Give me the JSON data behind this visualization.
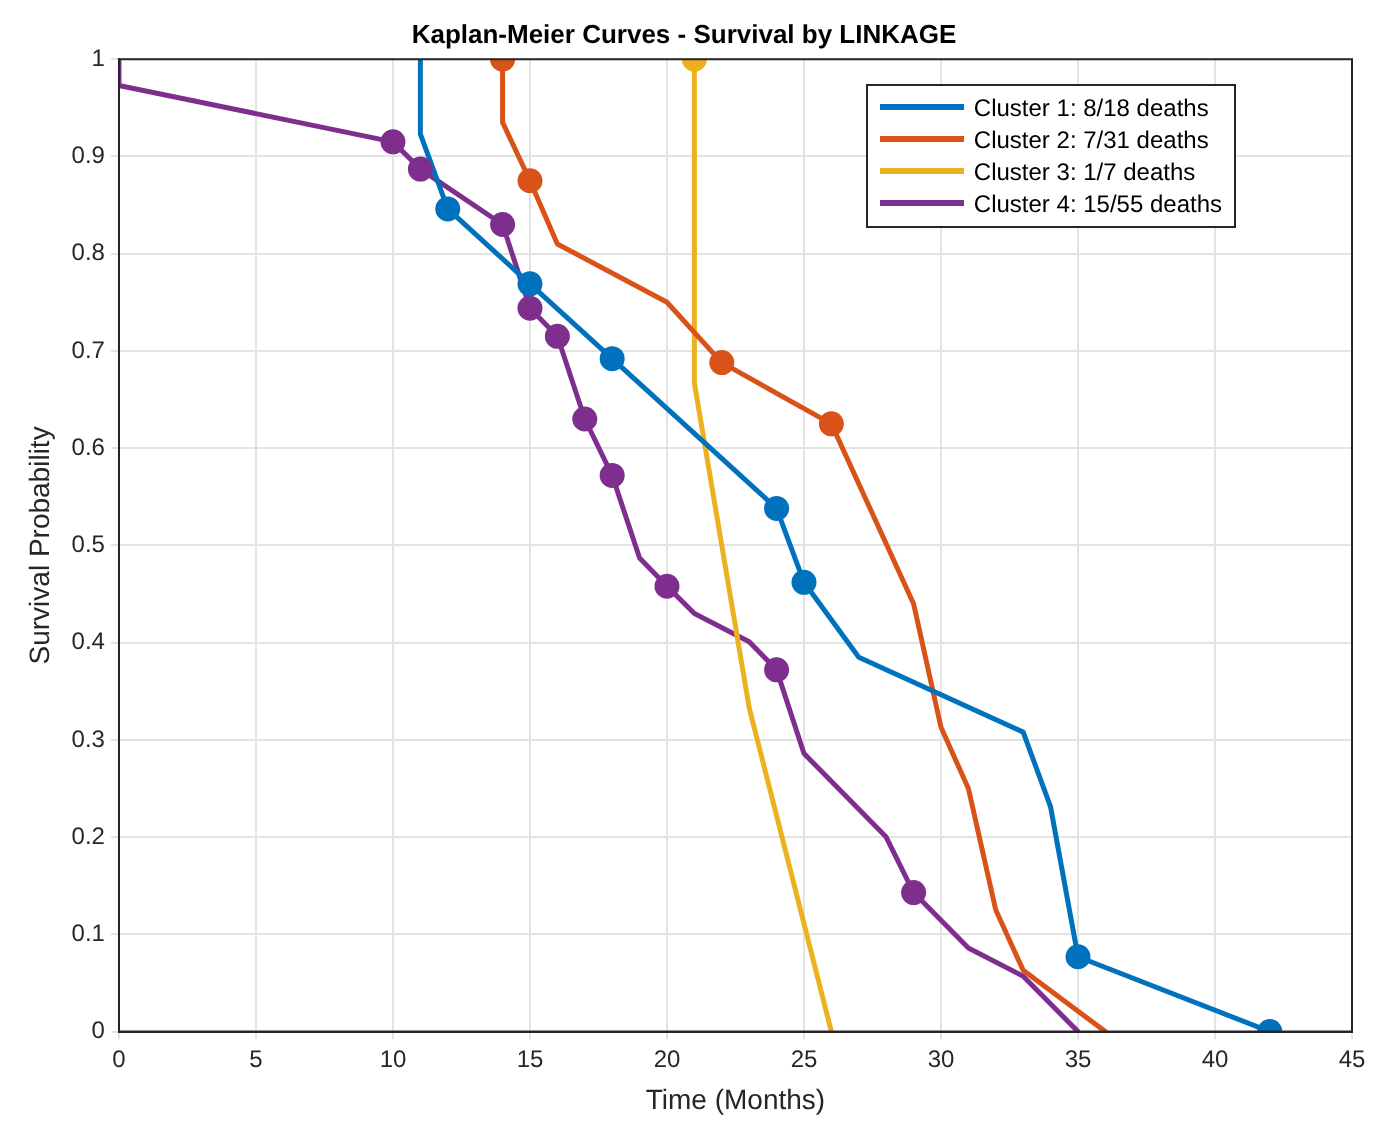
{
  "chart_data": {
    "type": "line",
    "title": "Kaplan-Meier Curves - Survival by LINKAGE",
    "xlabel": "Time (Months)",
    "ylabel": "Survival Probability",
    "xlim": [
      0,
      45
    ],
    "ylim": [
      0,
      1
    ],
    "xticks": [
      0,
      5,
      10,
      15,
      20,
      25,
      30,
      35,
      40,
      45
    ],
    "yticks": [
      0,
      0.1,
      0.2,
      0.3,
      0.4,
      0.5,
      0.6,
      0.7,
      0.8,
      0.9,
      1
    ],
    "grid": true,
    "legend": "top right",
    "line_style": "solid",
    "series": [
      {
        "name": "Cluster 1: 8/18 deaths",
        "color": "#0072bd",
        "type": "line",
        "marker": "none",
        "x": [
          11,
          11,
          12,
          15,
          18,
          24,
          25,
          27,
          33,
          34,
          35,
          42
        ],
        "values": [
          1,
          0.923,
          0.846,
          0.769,
          0.692,
          0.538,
          0.462,
          0.385,
          0.308,
          0.231,
          0.077,
          0
        ]
      },
      {
        "name": "Cluster 2: 7/31 deaths",
        "color": "#d95319",
        "type": "line",
        "marker": "none",
        "x": [
          14,
          14,
          15,
          16,
          20,
          22,
          26,
          29,
          30,
          31,
          32,
          33,
          36
        ],
        "values": [
          1,
          0.935,
          0.875,
          0.81,
          0.75,
          0.688,
          0.625,
          0.44,
          0.313,
          0.25,
          0.125,
          0.063,
          0
        ]
      },
      {
        "name": "Cluster 3: 1/7 deaths",
        "color": "#edb120",
        "type": "line",
        "marker": "none",
        "x": [
          21,
          21,
          23,
          26
        ],
        "values": [
          1,
          0.667,
          0.333,
          0
        ]
      },
      {
        "name": "Cluster 4: 15/55 deaths",
        "color": "#7e2f8e",
        "type": "line",
        "marker": "none",
        "x": [
          0,
          0,
          10,
          11,
          14,
          15,
          16,
          17,
          18,
          19,
          20,
          21,
          23,
          24,
          25,
          28,
          29,
          31,
          33,
          35
        ],
        "values": [
          1,
          0.973,
          0.915,
          0.887,
          0.83,
          0.744,
          0.715,
          0.63,
          0.572,
          0.487,
          0.458,
          0.43,
          0.401,
          0.372,
          0.286,
          0.2,
          0.143,
          0.086,
          0.057,
          0
        ]
      },
      {
        "color": "#0072bd",
        "type": "scatter",
        "marker": "circle",
        "x": [
          12,
          15,
          18,
          24,
          25,
          35,
          42
        ],
        "values": [
          0.846,
          0.769,
          0.692,
          0.538,
          0.462,
          0.077,
          0
        ]
      },
      {
        "color": "#d95319",
        "type": "scatter",
        "marker": "circle",
        "x": [
          14,
          15,
          22,
          26
        ],
        "values": [
          1,
          0.875,
          0.688,
          0.625
        ]
      },
      {
        "color": "#edb120",
        "type": "scatter",
        "marker": "circle",
        "x": [
          21
        ],
        "values": [
          1
        ]
      },
      {
        "color": "#7e2f8e",
        "type": "scatter",
        "marker": "circle",
        "x": [
          10,
          11,
          14,
          15,
          16,
          17,
          18,
          20,
          24,
          29
        ],
        "values": [
          0.915,
          0.887,
          0.83,
          0.744,
          0.715,
          0.63,
          0.572,
          0.458,
          0.372,
          0.143
        ]
      }
    ]
  }
}
